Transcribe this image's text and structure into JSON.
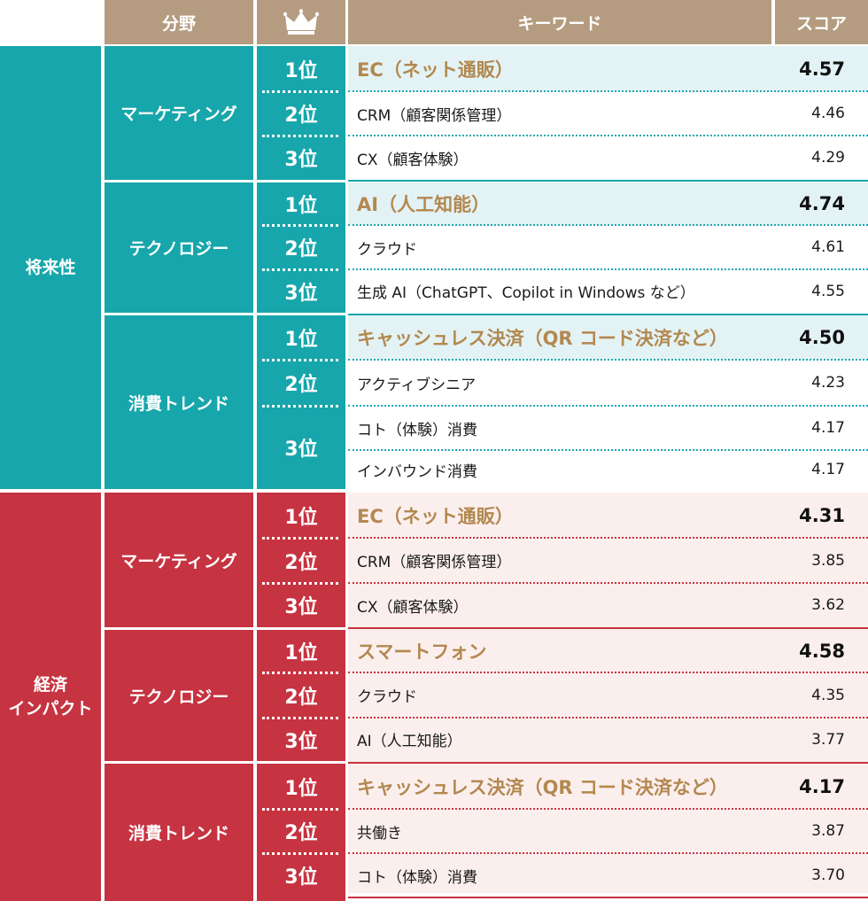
{
  "header": {
    "field": "分野",
    "rank_icon": "crown-icon",
    "keyword": "キーワード",
    "score": "スコア"
  },
  "groups": [
    {
      "label": "将来性",
      "color": "#17a6ab",
      "categories": [
        {
          "name": "マーケティング",
          "rows": [
            {
              "rank": "1位",
              "keyword": "EC（ネット通販）",
              "score": "4.57"
            },
            {
              "rank": "2位",
              "keyword": "CRM（顧客関係管理）",
              "score": "4.46"
            },
            {
              "rank": "3位",
              "keyword": "CX（顧客体験）",
              "score": "4.29"
            }
          ]
        },
        {
          "name": "テクノロジー",
          "rows": [
            {
              "rank": "1位",
              "keyword": "AI（人工知能）",
              "score": "4.74"
            },
            {
              "rank": "2位",
              "keyword": "クラウド",
              "score": "4.61"
            },
            {
              "rank": "3位",
              "keyword": "生成 AI（ChatGPT、Copilot in Windows など）",
              "score": "4.55"
            }
          ]
        },
        {
          "name": "消費トレンド",
          "rows": [
            {
              "rank": "1位",
              "keyword": "キャッシュレス決済（QR コード決済など）",
              "score": "4.50"
            },
            {
              "rank": "2位",
              "keyword": "アクティブシニア",
              "score": "4.23"
            },
            {
              "rank": "3位",
              "keyword": "コト（体験）消費",
              "score": "4.17"
            },
            {
              "rank": "",
              "keyword": "インバウンド消費",
              "score": "4.17"
            }
          ]
        }
      ]
    },
    {
      "label": "経済\nインパクト",
      "color": "#c63341",
      "categories": [
        {
          "name": "マーケティング",
          "rows": [
            {
              "rank": "1位",
              "keyword": "EC（ネット通販）",
              "score": "4.31"
            },
            {
              "rank": "2位",
              "keyword": "CRM（顧客関係管理）",
              "score": "3.85"
            },
            {
              "rank": "3位",
              "keyword": "CX（顧客体験）",
              "score": "3.62"
            }
          ]
        },
        {
          "name": "テクノロジー",
          "rows": [
            {
              "rank": "1位",
              "keyword": "スマートフォン",
              "score": "4.58"
            },
            {
              "rank": "2位",
              "keyword": "クラウド",
              "score": "4.35"
            },
            {
              "rank": "3位",
              "keyword": "AI（人工知能）",
              "score": "3.77"
            }
          ]
        },
        {
          "name": "消費トレンド",
          "rows": [
            {
              "rank": "1位",
              "keyword": "キャッシュレス決済（QR コード決済など）",
              "score": "4.17"
            },
            {
              "rank": "2位",
              "keyword": "共働き",
              "score": "3.87"
            },
            {
              "rank": "3位",
              "keyword": "コト（体験）消費",
              "score": "3.70"
            }
          ]
        }
      ]
    }
  ]
}
